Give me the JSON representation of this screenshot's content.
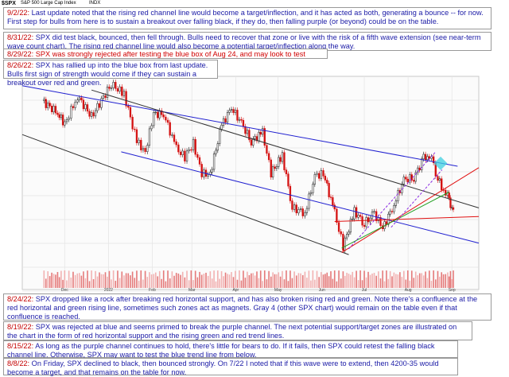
{
  "chart_header": {
    "symbol": "$SPX",
    "name": "S&P 500 Large Cap Index",
    "exchange": "INDX"
  },
  "annotations": [
    {
      "date": "9/2/22:",
      "text": "Last update noted that the rising red channel line would become a target/inflection, and it has acted as both, generating a bounce -- for now. First step for bulls from here is to sustain a breakout over falling black, if they do, then falling purple (or beyond) could be on the table."
    },
    {
      "date": "8/31/22:",
      "text": "SPX did test black, bounced, then fell through. Bulls need to recover that zone or live with the risk of a fifth wave extension (see near-term wave count chart). The rising red channel line would also become a potential target/inflection along the way."
    },
    {
      "date": "8/29/22:",
      "text": "SPX was strongly rejected after testing the blue box of Aug 24, and may look to test falling black next."
    },
    {
      "date": "8/26/22:",
      "text": "SPX has rallied up into the blue box from last update. Bulls first sign of strength would come if they can sustain a breakout over red and green."
    },
    {
      "date": "8/24/22:",
      "text": "SPX dropped like a rock after breaking red horizontal support, and has also broken rising red and green. Note there's a confluence at the red horizontal and green rising line, sometimes such zones act as magnets. Gray 4 (other SPX chart) would remain on the table even if that confluence is reached."
    },
    {
      "date": "8/19/22:",
      "text": "SPX was rejected at blue and seems primed to break the purple channel. The next potential support/target zones are illustrated on the chart in the form of red horizontal support and the rising green and red trend lines."
    },
    {
      "date": "8/15/22:",
      "text": "As long as the purple channel continues to hold, there's little for bears to do. If it fails, then SPX could retest the falling black channel line. Otherwise, SPX may want to test the blue trend line from below."
    },
    {
      "date": "8/8/22:",
      "text": "On Friday, SPX declined to black, then bounced strongly. On 7/22 I noted that if this wave were to extend, then 4200-35 would become a target, and that remains on the table for now."
    }
  ],
  "chart_data": {
    "type": "line",
    "subtype": "candlestick_with_trendlines",
    "x_tick_labels": [
      "Dec",
      "2022",
      "Feb",
      "Mar",
      "Apr",
      "May",
      "Jun",
      "Jul",
      "Aug",
      "Sep"
    ],
    "price_series": [
      {
        "t": "2021-11-15",
        "close": 4680
      },
      {
        "t": "2021-11-26",
        "close": 4595
      },
      {
        "t": "2021-12-01",
        "close": 4515
      },
      {
        "t": "2021-12-10",
        "close": 4712
      },
      {
        "t": "2021-12-20",
        "close": 4570
      },
      {
        "t": "2022-01-03",
        "close": 4796
      },
      {
        "t": "2022-01-12",
        "close": 4726
      },
      {
        "t": "2022-01-21",
        "close": 4398
      },
      {
        "t": "2022-01-27",
        "close": 4326
      },
      {
        "t": "2022-02-02",
        "close": 4589
      },
      {
        "t": "2022-02-09",
        "close": 4587
      },
      {
        "t": "2022-02-18",
        "close": 4348
      },
      {
        "t": "2022-02-24",
        "close": 4288
      },
      {
        "t": "2022-03-02",
        "close": 4386
      },
      {
        "t": "2022-03-08",
        "close": 4170
      },
      {
        "t": "2022-03-14",
        "close": 4173
      },
      {
        "t": "2022-03-22",
        "close": 4511
      },
      {
        "t": "2022-03-29",
        "close": 4631
      },
      {
        "t": "2022-04-05",
        "close": 4525
      },
      {
        "t": "2022-04-12",
        "close": 4397
      },
      {
        "t": "2022-04-20",
        "close": 4460
      },
      {
        "t": "2022-04-26",
        "close": 4175
      },
      {
        "t": "2022-05-04",
        "close": 4300
      },
      {
        "t": "2022-05-11",
        "close": 3935
      },
      {
        "t": "2022-05-20",
        "close": 3901
      },
      {
        "t": "2022-05-27",
        "close": 4158
      },
      {
        "t": "2022-06-02",
        "close": 4176
      },
      {
        "t": "2022-06-10",
        "close": 3901
      },
      {
        "t": "2022-06-16",
        "close": 3667
      },
      {
        "t": "2022-06-24",
        "close": 3912
      },
      {
        "t": "2022-07-01",
        "close": 3825
      },
      {
        "t": "2022-07-08",
        "close": 3899
      },
      {
        "t": "2022-07-14",
        "close": 3790
      },
      {
        "t": "2022-07-22",
        "close": 3962
      },
      {
        "t": "2022-07-29",
        "close": 4130
      },
      {
        "t": "2022-08-05",
        "close": 4145
      },
      {
        "t": "2022-08-12",
        "close": 4280
      },
      {
        "t": "2022-08-16",
        "close": 4305
      },
      {
        "t": "2022-08-19",
        "close": 4228
      },
      {
        "t": "2022-08-22",
        "close": 4138
      },
      {
        "t": "2022-08-26",
        "close": 4058
      },
      {
        "t": "2022-08-29",
        "close": 4030
      },
      {
        "t": "2022-08-31",
        "close": 3955
      },
      {
        "t": "2022-09-02",
        "close": 3924
      }
    ],
    "trendlines": [
      {
        "name": "blue",
        "color": "#2020d0",
        "points": [
          {
            "t": "2021-11-01",
            "p": 4785
          },
          {
            "t": "2022-09-05",
            "p": 4225
          }
        ]
      },
      {
        "name": "blue",
        "color": "#2020d0",
        "points": [
          {
            "t": "2022-01-10",
            "p": 4325
          },
          {
            "t": "2022-09-20",
            "p": 3690
          }
        ]
      },
      {
        "name": "black",
        "color": "#333333",
        "points": [
          {
            "t": "2021-12-20",
            "p": 4755
          },
          {
            "t": "2022-09-20",
            "p": 3935
          }
        ]
      },
      {
        "name": "black",
        "color": "#333333",
        "points": [
          {
            "t": "2021-11-01",
            "p": 4445
          },
          {
            "t": "2022-06-20",
            "p": 3610
          }
        ]
      },
      {
        "name": "red",
        "color": "#e01010",
        "points": [
          {
            "t": "2022-06-15",
            "p": 3625
          },
          {
            "t": "2022-09-20",
            "p": 4215
          }
        ]
      },
      {
        "name": "red",
        "color": "#e01010",
        "points": [
          {
            "t": "2022-06-10",
            "p": 3840
          },
          {
            "t": "2022-09-20",
            "p": 3875
          }
        ]
      },
      {
        "name": "green",
        "color": "#22a022",
        "points": [
          {
            "t": "2022-06-15",
            "p": 3655
          },
          {
            "t": "2022-08-30",
            "p": 4045
          }
        ]
      },
      {
        "name": "purple",
        "color": "#8a2be2",
        "points": [
          {
            "t": "2022-06-20",
            "p": 3650
          },
          {
            "t": "2022-08-20",
            "p": 4320
          }
        ]
      },
      {
        "name": "purple",
        "color": "#8a2be2",
        "points": [
          {
            "t": "2022-07-20",
            "p": 3800
          },
          {
            "t": "2022-08-25",
            "p": 4200
          }
        ]
      }
    ],
    "blue_box": {
      "t": "2022-08-24",
      "p": 4245
    },
    "ylim": [
      3500,
      4850
    ],
    "grid": true
  },
  "colors": {
    "accent_red": "#c40000",
    "text_blue": "#1a1aa6",
    "grid": "#e4e4e4"
  }
}
